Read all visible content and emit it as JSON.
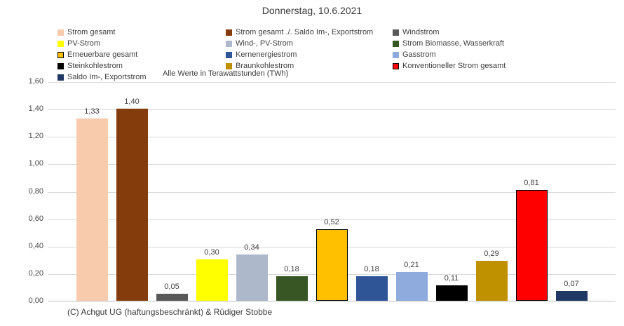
{
  "title": "Donnerstag, 10.6.2021",
  "unit_note": "Alle Werte in Terawattstunden (TWh)",
  "footer": "(C) Achgut UG (haftungsbeschränkt) & Rüdiger Stobbe",
  "colors": {
    "gridline": "#d9d9d9",
    "axis_line": "#bfbfbf",
    "text": "#404040",
    "background": "#ffffff"
  },
  "chart_data": {
    "type": "bar",
    "title": "Donnerstag, 10.6.2021",
    "xlabel": "",
    "ylabel": "TWh",
    "ylim": [
      0,
      1.6
    ],
    "ytick_step": 0.2,
    "y_ticks_top_to_bottom": [
      "1,60",
      "1,40",
      "1,20",
      "1,00",
      "0,80",
      "0,60",
      "0,40",
      "0,20",
      "0,00"
    ],
    "grid": true,
    "legend_position": "top",
    "legend_columns": 3,
    "series": [
      {
        "label": "Strom gesamt",
        "value": 1.33,
        "display": "1,33",
        "color": "#F8CBAD",
        "border": null
      },
      {
        "label": "Strom gesamt ./. Saldo Im-, Exportstrom",
        "value": 1.4,
        "display": "1,40",
        "color": "#843C0C",
        "border": null
      },
      {
        "label": "Windstrom",
        "value": 0.05,
        "display": "0,05",
        "color": "#595959",
        "border": null
      },
      {
        "label": "PV-Strom",
        "value": 0.3,
        "display": "0,30",
        "color": "#FFFF00",
        "border": null
      },
      {
        "label": "Wind-, PV-Strom",
        "value": 0.34,
        "display": "0,34",
        "color": "#ADB9CA",
        "border": null
      },
      {
        "label": "Strom Biomasse, Wasserkraft",
        "value": 0.18,
        "display": "0,18",
        "color": "#375623",
        "border": null
      },
      {
        "label": "Erneuerbare gesamt",
        "value": 0.52,
        "display": "0,52",
        "color": "#FFC000",
        "border": "#000000"
      },
      {
        "label": "Kernenergiestrom",
        "value": 0.18,
        "display": "0,18",
        "color": "#2F5597",
        "border": null
      },
      {
        "label": "Gasstrom",
        "value": 0.21,
        "display": "0,21",
        "color": "#8FAADC",
        "border": null
      },
      {
        "label": "Steinkohlestrom",
        "value": 0.11,
        "display": "0,11",
        "color": "#000000",
        "border": null
      },
      {
        "label": "Braunkohlestrom",
        "value": 0.29,
        "display": "0,29",
        "color": "#BF9000",
        "border": null
      },
      {
        "label": "Konventioneller Strom gesamt",
        "value": 0.81,
        "display": "0,81",
        "color": "#FF0000",
        "border": "#000000"
      },
      {
        "label": "Saldo Im-, Exportstrom",
        "value": 0.07,
        "display": "0,07",
        "color": "#1F3864",
        "border": null
      }
    ]
  }
}
